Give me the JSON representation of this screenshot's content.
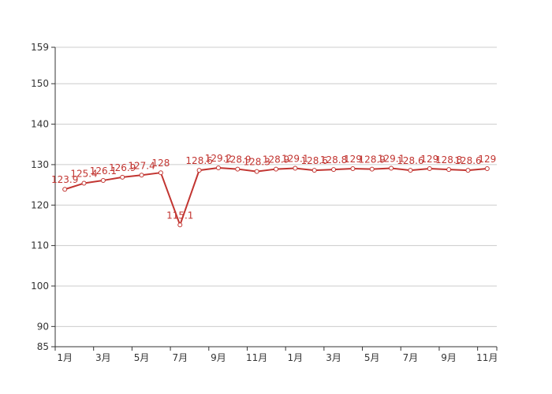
{
  "colors": {
    "series": "#c23531",
    "grid": "#cccccc",
    "axis": "#333333",
    "background": "#ffffff"
  },
  "chart_data": {
    "type": "line",
    "title": "",
    "xlabel": "",
    "ylabel": "",
    "ylim": [
      85,
      159
    ],
    "y_ticks": [
      85,
      90,
      100,
      110,
      120,
      130,
      140,
      150,
      159
    ],
    "grid": true,
    "x_tick_labels": [
      "1月",
      "3月",
      "5月",
      "7月",
      "9月",
      "11月",
      "1月",
      "3月",
      "5月",
      "7月",
      "9月",
      "11月"
    ],
    "categories": [
      "1月",
      "2月",
      "3月",
      "4月",
      "5月",
      "6月",
      "7月",
      "8月",
      "9月",
      "10月",
      "11月",
      "12月",
      "1月",
      "2月",
      "3月",
      "4月",
      "5月",
      "6月",
      "7月",
      "8月",
      "9月",
      "10月",
      "11月"
    ],
    "values": [
      123.9,
      125.4,
      126.1,
      126.9,
      127.4,
      128,
      115.1,
      128.6,
      129.2,
      128.9,
      128.3,
      128.9,
      129.1,
      128.6,
      128.8,
      129,
      128.9,
      129.1,
      128.6,
      129,
      128.8,
      128.6,
      129
    ],
    "labels": [
      "123.9",
      "125.4",
      "126.1",
      "126.9",
      "127.4",
      "128",
      "115.1",
      "128.6",
      "129.2",
      "128.9",
      "128.3",
      "128.9",
      "129.1",
      "128.6",
      "128.8",
      "129",
      "128.9",
      "129.1",
      "128.6",
      "129",
      "128.8",
      "128.6",
      "129"
    ]
  }
}
